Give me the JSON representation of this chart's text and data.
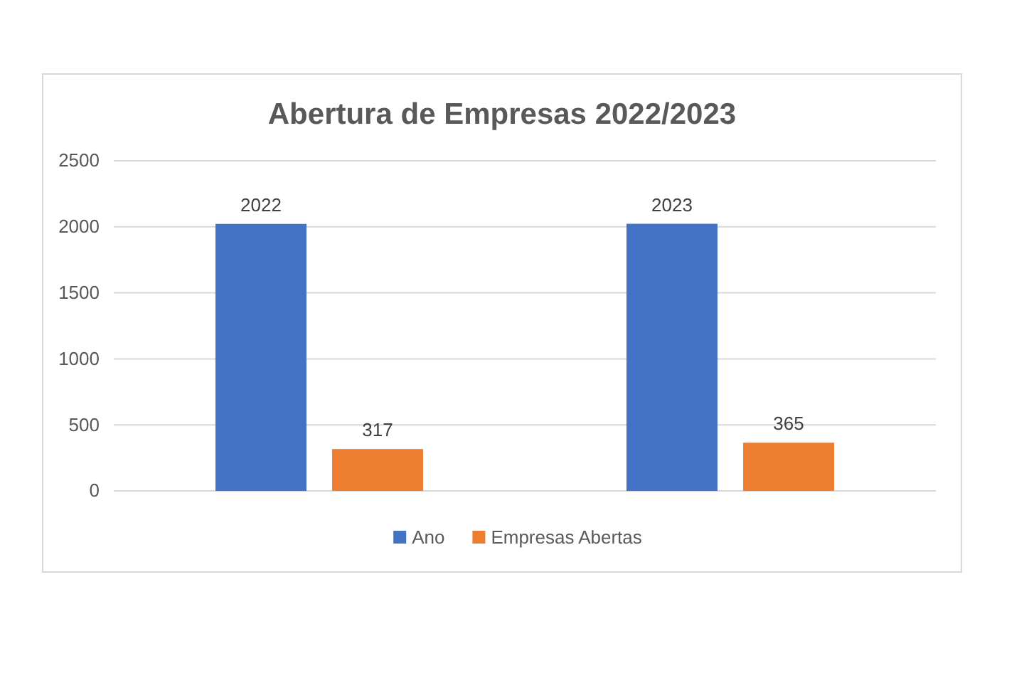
{
  "chart_data": {
    "type": "bar",
    "title": "Abertura de Empresas 2022/2023",
    "categories": [
      null,
      null
    ],
    "series": [
      {
        "name": "Ano",
        "color": "#4472c4",
        "values": [
          2022,
          2023
        ]
      },
      {
        "name": "Empresas Abertas",
        "color": "#ed7d31",
        "values": [
          317,
          365
        ]
      }
    ],
    "ylim": [
      0,
      2500
    ],
    "yticks": [
      0,
      500,
      1000,
      1500,
      2000,
      2500
    ],
    "grid": "y",
    "legend": "bottom",
    "data_labels": true
  }
}
